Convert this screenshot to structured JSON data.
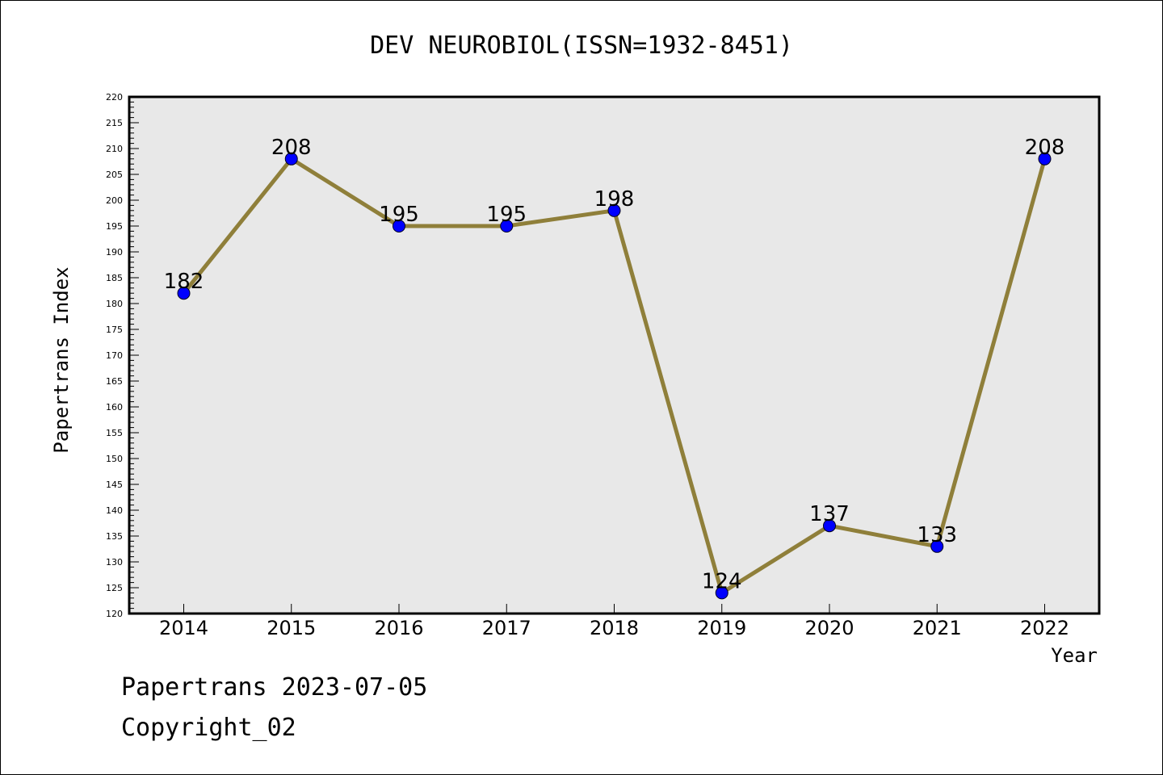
{
  "chart_data": {
    "type": "line",
    "title": "DEV NEUROBIOL(ISSN=1932-8451)",
    "xlabel": "Year",
    "ylabel": "Papertrans Index",
    "x": [
      "2014",
      "2015",
      "2016",
      "2017",
      "2018",
      "2019",
      "2020",
      "2021",
      "2022"
    ],
    "series": [
      {
        "values": [
          182,
          208,
          195,
          195,
          198,
          124,
          137,
          133,
          208
        ]
      }
    ],
    "ylim": [
      120,
      220
    ],
    "ytick_step": 5,
    "grid": false,
    "line_color": "#8f7f3a",
    "marker_color": "#0000ff",
    "plot_background": "#e8e8e8"
  },
  "footer": {
    "line1": "Papertrans 2023-07-05",
    "line2": "Copyright_02"
  }
}
